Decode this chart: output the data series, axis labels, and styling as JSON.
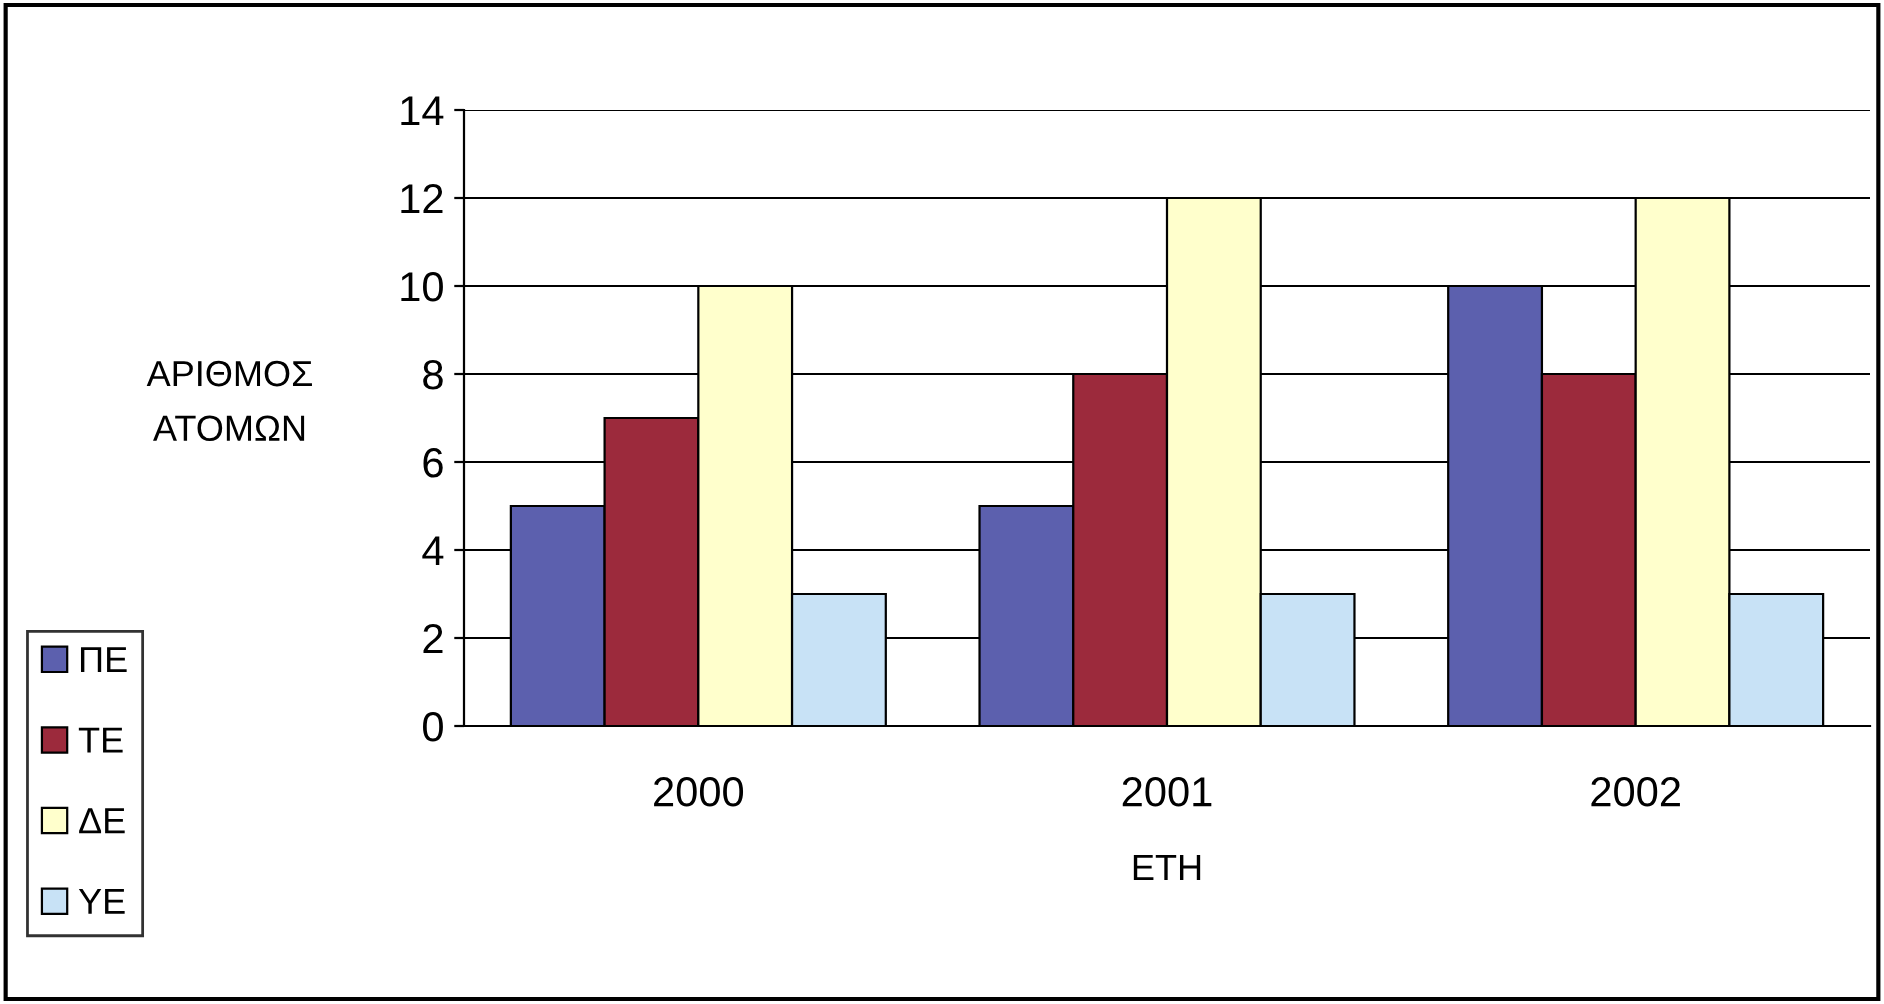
{
  "chart_data": {
    "type": "bar",
    "xlabel": "ΕΤΗ",
    "ylabel": "ΑΡΙΘΜΟΣ\nΑΤΟΜΩΝ",
    "categories": [
      "2000",
      "2001",
      "2002"
    ],
    "series": [
      {
        "name": "ΠΕ",
        "color": "#5c60ae",
        "values": [
          5,
          5,
          10
        ]
      },
      {
        "name": "ΤΕ",
        "color": "#9c2a3c",
        "values": [
          7,
          8,
          8
        ]
      },
      {
        "name": "ΔΕ",
        "color": "#ffffcc",
        "values": [
          10,
          12,
          12
        ]
      },
      {
        "name": "ΥΕ",
        "color": "#c8e2f6",
        "values": [
          3,
          3,
          3
        ]
      }
    ],
    "ylim": [
      0,
      14
    ],
    "yticks": [
      0,
      2,
      4,
      6,
      8,
      10,
      12,
      14
    ],
    "grid": "y",
    "legend": "bottom left"
  }
}
